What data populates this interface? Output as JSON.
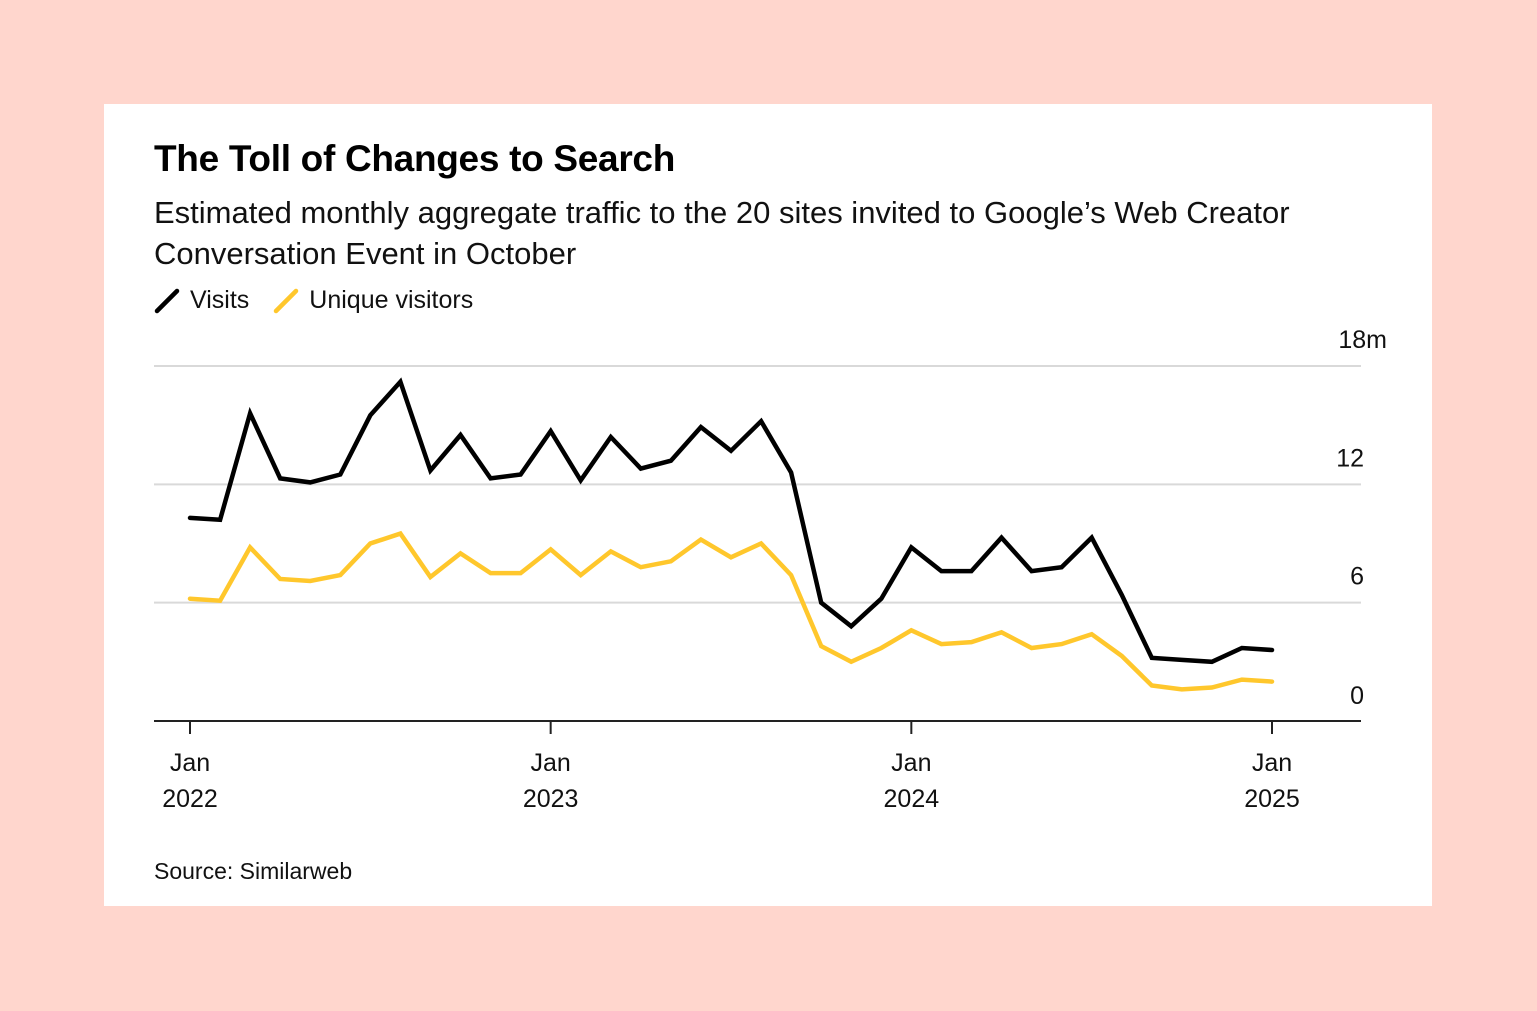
{
  "background_color": "#ffd6cd",
  "title": "The Toll of Changes to Search",
  "subtitle": "Estimated monthly aggregate traffic to the 20 sites invited to Google’s Web Creator Conversation Event in October",
  "source": "Source: Similarweb",
  "chart_data": {
    "type": "line",
    "title": "The Toll of Changes to Search",
    "subtitle": "Estimated monthly aggregate traffic to the 20 sites invited to Google’s Web Creator Conversation Event in October",
    "xlabel": "",
    "ylabel": "",
    "ylim": [
      0,
      18
    ],
    "yticks": [
      {
        "value": 18,
        "label": "18m"
      },
      {
        "value": 12,
        "label": "12"
      },
      {
        "value": 6,
        "label": "6"
      },
      {
        "value": 0,
        "label": "0"
      }
    ],
    "xticks": [
      {
        "index": 0,
        "line1": "Jan",
        "line2": "2022"
      },
      {
        "index": 12,
        "line1": "Jan",
        "line2": "2023"
      },
      {
        "index": 24,
        "line1": "Jan",
        "line2": "2024"
      },
      {
        "index": 36,
        "line1": "Jan",
        "line2": "2025"
      }
    ],
    "x": [
      "2022-01",
      "2022-02",
      "2022-03",
      "2022-04",
      "2022-05",
      "2022-06",
      "2022-07",
      "2022-08",
      "2022-09",
      "2022-10",
      "2022-11",
      "2022-12",
      "2023-01",
      "2023-02",
      "2023-03",
      "2023-04",
      "2023-05",
      "2023-06",
      "2023-07",
      "2023-08",
      "2023-09",
      "2023-10",
      "2023-11",
      "2023-12",
      "2024-01",
      "2024-02",
      "2024-03",
      "2024-04",
      "2024-05",
      "2024-06",
      "2024-07",
      "2024-08",
      "2024-09",
      "2024-10",
      "2024-11",
      "2024-12",
      "2025-01"
    ],
    "grid": true,
    "legend_position": "top-left",
    "series": [
      {
        "name": "Visits",
        "color": "#000000",
        "values": [
          10.3,
          10.2,
          15.6,
          12.3,
          12.1,
          12.5,
          15.5,
          17.2,
          12.7,
          14.5,
          12.3,
          12.5,
          14.7,
          12.2,
          14.4,
          12.8,
          13.2,
          14.9,
          13.7,
          15.2,
          12.6,
          6.0,
          4.8,
          6.2,
          8.8,
          7.6,
          7.6,
          9.3,
          7.6,
          7.8,
          9.3,
          6.4,
          3.2,
          3.1,
          3.0,
          3.7,
          3.6
        ]
      },
      {
        "name": "Unique visitors",
        "color": "#ffc72c",
        "values": [
          6.2,
          6.1,
          8.8,
          7.2,
          7.1,
          7.4,
          9.0,
          9.5,
          7.3,
          8.5,
          7.5,
          7.5,
          8.7,
          7.4,
          8.6,
          7.8,
          8.1,
          9.2,
          8.3,
          9.0,
          7.4,
          3.8,
          3.0,
          3.7,
          4.6,
          3.9,
          4.0,
          4.5,
          3.7,
          3.9,
          4.4,
          3.3,
          1.8,
          1.6,
          1.7,
          2.1,
          2.0
        ]
      }
    ]
  }
}
